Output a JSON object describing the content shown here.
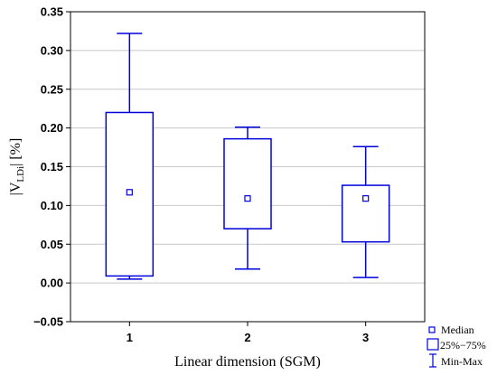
{
  "chart_data": {
    "type": "boxplot",
    "categories": [
      "1",
      "2",
      "3"
    ],
    "series": [
      {
        "statistics": [
          {
            "category": "1",
            "min": 0.005,
            "q1": 0.009,
            "median": 0.117,
            "q3": 0.22,
            "max": 0.322
          },
          {
            "category": "2",
            "min": 0.018,
            "q1": 0.07,
            "median": 0.109,
            "q3": 0.186,
            "max": 0.201
          },
          {
            "category": "3",
            "min": 0.007,
            "q1": 0.053,
            "median": 0.109,
            "q3": 0.126,
            "max": 0.176
          }
        ]
      }
    ],
    "xlabel": "Linear dimension (SGM)",
    "ylabel_parts": {
      "pre": "|V",
      "sub": "LDi",
      "post": "| [%]"
    },
    "ylim": [
      -0.05,
      0.35
    ],
    "yticks": [
      -0.05,
      0.0,
      0.05,
      0.1,
      0.15,
      0.2,
      0.25,
      0.3,
      0.35
    ],
    "ytick_labels": [
      "−0.05",
      "0.00",
      "0.05",
      "0.10",
      "0.15",
      "0.20",
      "0.25",
      "0.30",
      "0.35"
    ],
    "grid": "horizontal",
    "legend": {
      "placement": "bottom-right",
      "entries": [
        "Median",
        "25%−75%",
        "Min-Max"
      ]
    },
    "colors": {
      "series": "#0000dd",
      "grid": "#c8c8c8",
      "axes": "#000000"
    }
  }
}
